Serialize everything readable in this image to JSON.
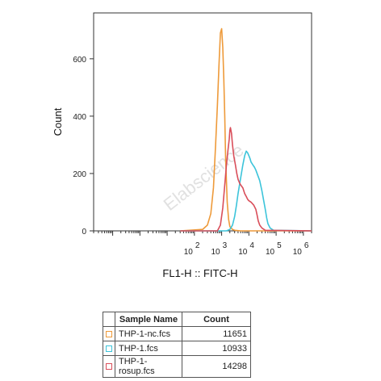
{
  "chart_data": {
    "type": "line",
    "title": "",
    "xlabel": "FL1-H :: FITC-H",
    "ylabel": "Count",
    "x_scale": "log",
    "xlim": [
      0.02,
      2000000
    ],
    "ylim": [
      0,
      760
    ],
    "x_tick_labels": [
      {
        "base": "10",
        "exp": "2",
        "value": 100
      },
      {
        "base": "10",
        "exp": "3",
        "value": 1000
      },
      {
        "base": "10",
        "exp": "4",
        "value": 10000
      },
      {
        "base": "10",
        "exp": "5",
        "value": 100000
      },
      {
        "base": "10",
        "exp": "6",
        "value": 1000000
      }
    ],
    "y_ticks": [
      0,
      200,
      400,
      600
    ],
    "series": [
      {
        "name": "THP-1-nc.fcs",
        "color": "#ee9a3a",
        "x": [
          30,
          200,
          300,
          400,
          500,
          600,
          700,
          800,
          900,
          1000,
          1100,
          1200,
          1300,
          1400,
          1600,
          1800,
          2000,
          2500,
          3000,
          5000,
          10000,
          100000,
          2000000
        ],
        "y": [
          0,
          5,
          20,
          60,
          150,
          300,
          440,
          580,
          690,
          705,
          640,
          530,
          400,
          250,
          100,
          40,
          15,
          5,
          2,
          0,
          0,
          0,
          0
        ]
      },
      {
        "name": "THP-1.fcs",
        "color": "#3cc4da",
        "x": [
          30,
          1500,
          2000,
          2500,
          3000,
          3500,
          4000,
          5000,
          6000,
          7000,
          8000,
          9000,
          10000,
          11000,
          12000,
          14000,
          16000,
          18000,
          20000,
          25000,
          30000,
          35000,
          40000,
          45000,
          50000,
          60000,
          80000,
          2000000
        ],
        "y": [
          0,
          0,
          5,
          20,
          50,
          90,
          130,
          185,
          230,
          262,
          278,
          272,
          262,
          252,
          240,
          230,
          222,
          212,
          200,
          175,
          140,
          105,
          75,
          45,
          25,
          10,
          2,
          0
        ]
      },
      {
        "name": "THP-1-rosup.fcs",
        "color": "#d94e5a",
        "x": [
          30,
          700,
          900,
          1100,
          1300,
          1500,
          1700,
          1900,
          2000,
          2100,
          2300,
          2500,
          2800,
          3200,
          3600,
          4000,
          4500,
          5000,
          6000,
          7000,
          8000,
          9000,
          10000,
          12000,
          15000,
          18000,
          20000,
          22000,
          25000,
          30000,
          40000,
          2000000
        ],
        "y": [
          0,
          0,
          20,
          80,
          160,
          230,
          280,
          320,
          350,
          360,
          340,
          300,
          260,
          230,
          200,
          180,
          168,
          160,
          150,
          130,
          120,
          110,
          105,
          100,
          90,
          75,
          55,
          35,
          20,
          10,
          2,
          0
        ]
      }
    ],
    "legend_placement": "below"
  },
  "watermark": "Elabscience",
  "legend_table": {
    "headers": [
      "",
      "Sample Name",
      "Count"
    ],
    "rows": [
      {
        "swatch_color": "#ee9a3a",
        "name": "THP-1-nc.fcs",
        "count": "11651"
      },
      {
        "swatch_color": "#3cc4da",
        "name": "THP-1.fcs",
        "count": "10933"
      },
      {
        "swatch_color": "#d94e5a",
        "name": "THP-1-rosup.fcs",
        "count": "14298"
      }
    ]
  }
}
